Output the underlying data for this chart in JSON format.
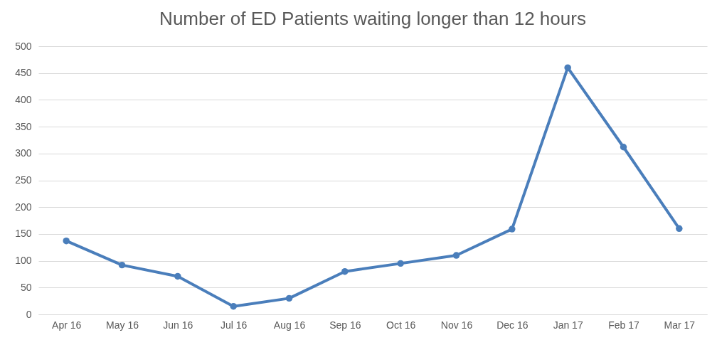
{
  "chart_data": {
    "type": "line",
    "title": "Number of ED Patients waiting longer than 12 hours",
    "categories": [
      "Apr 16",
      "May 16",
      "Jun 16",
      "Jul 16",
      "Aug 16",
      "Sep 16",
      "Oct 16",
      "Nov 16",
      "Dec 16",
      "Jan 17",
      "Feb 17",
      "Mar 17"
    ],
    "series": [
      {
        "color": "#4a7ebb",
        "values": [
          137,
          92,
          71,
          15,
          30,
          80,
          95,
          110,
          159,
          460,
          312,
          160
        ]
      }
    ],
    "ylim": [
      0,
      500
    ],
    "yticks": [
      0,
      50,
      100,
      150,
      200,
      250,
      300,
      350,
      400,
      450,
      500
    ],
    "grid": "y",
    "marker": "circle",
    "line_style": "solid",
    "legend": false
  }
}
